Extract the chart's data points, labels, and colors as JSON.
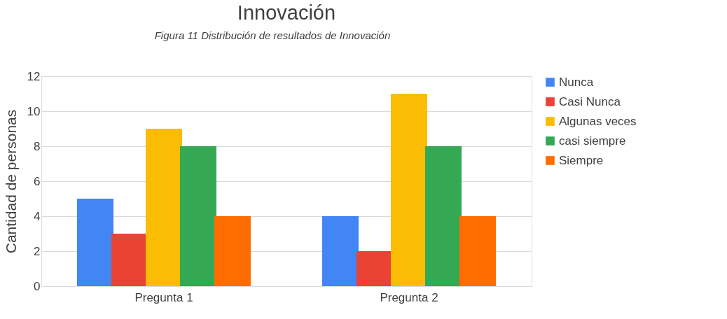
{
  "chart_data": {
    "type": "bar",
    "title": "Innovación",
    "ylabel": "Cantidad de personas",
    "annotations": [
      "Figura 11 Distribución de resultados de Innovación"
    ],
    "categories": [
      "Pregunta 1",
      "Pregunta 2"
    ],
    "series": [
      {
        "name": "Nunca",
        "color": "#4285f4",
        "values": [
          5,
          4
        ]
      },
      {
        "name": "Casi Nunca",
        "color": "#ea4335",
        "values": [
          3,
          2
        ]
      },
      {
        "name": "Algunas veces",
        "color": "#fbbc04",
        "values": [
          9,
          11
        ]
      },
      {
        "name": "casi siempre",
        "color": "#34a853",
        "values": [
          8,
          8
        ]
      },
      {
        "name": "Siempre",
        "color": "#ff6d01",
        "values": [
          4,
          4
        ]
      }
    ],
    "ylim": [
      0,
      12
    ],
    "yticks": [
      0,
      2,
      4,
      6,
      8,
      10,
      12
    ],
    "grid": "y",
    "legend": "right"
  }
}
